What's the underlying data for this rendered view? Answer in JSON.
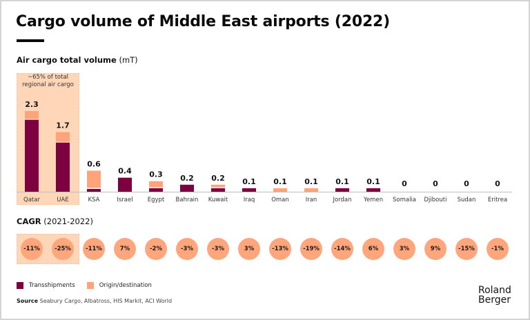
{
  "header": {
    "title": "Cargo volume of Middle East airports (2022)"
  },
  "volume_section": {
    "label_bold": "Air cargo total volume",
    "label_unit": " (mT)",
    "highlight_note_line1": "~65% of total",
    "highlight_note_line2": "regional air cargo"
  },
  "cagr_section": {
    "label_bold": "CAGR",
    "label_period": " (2021-2022)"
  },
  "legend": {
    "transshipments": "Transshipments",
    "origin_destination": "Origin/destination"
  },
  "source": {
    "label": "Source",
    "text": " Seabury Cargo, Albatross, HIS Markit, ACI World"
  },
  "brand": {
    "line1": "Roland",
    "line2": "Berger"
  },
  "colors": {
    "transshipments": "#7d0040",
    "origin_destination": "#ffa47a",
    "highlight": "#ffd6b8",
    "cagr_circle": "#ffa67c"
  },
  "chart_data": {
    "type": "bar",
    "stacked": true,
    "title": "Cargo volume of Middle East airports (2022)",
    "ylabel": "Air cargo total volume (mT)",
    "xlabel": "",
    "ylim": [
      0,
      2.3
    ],
    "grid": false,
    "legend_position": "bottom-left",
    "categories": [
      "Qatar",
      "UAE",
      "KSA",
      "Israel",
      "Egypt",
      "Bahrain",
      "Kuwait",
      "Iraq",
      "Oman",
      "Iran",
      "Jordan",
      "Yemen",
      "Somalia",
      "Djibouti",
      "Sudan",
      "Eritrea"
    ],
    "totals": [
      "2.3",
      "1.7",
      "0.6",
      "0.4",
      "0.3",
      "0.2",
      "0.2",
      "0.1",
      "0.1",
      "0.1",
      "0.1",
      "0.1",
      "0",
      "0",
      "0",
      "0"
    ],
    "series": [
      {
        "name": "Transshipments",
        "values": [
          2.05,
          1.4,
          0.08,
          0.4,
          0.1,
          0.2,
          0.1,
          0.1,
          0,
          0,
          0.1,
          0.1,
          0,
          0,
          0,
          0
        ]
      },
      {
        "name": "Origin/destination",
        "values": [
          0.25,
          0.3,
          0.52,
          0,
          0.2,
          0,
          0.1,
          0,
          0.1,
          0.1,
          0,
          0,
          0,
          0,
          0,
          0
        ]
      }
    ],
    "highlighted_categories": [
      "Qatar",
      "UAE"
    ],
    "annotation": "~65% of total regional air cargo",
    "cagr_label": "CAGR (2021-2022)",
    "cagr": [
      "-11%",
      "-25%",
      "-11%",
      "7%",
      "-2%",
      "-3%",
      "-3%",
      "3%",
      "-13%",
      "-19%",
      "-14%",
      "6%",
      "3%",
      "9%",
      "-15%",
      "-1%"
    ]
  }
}
